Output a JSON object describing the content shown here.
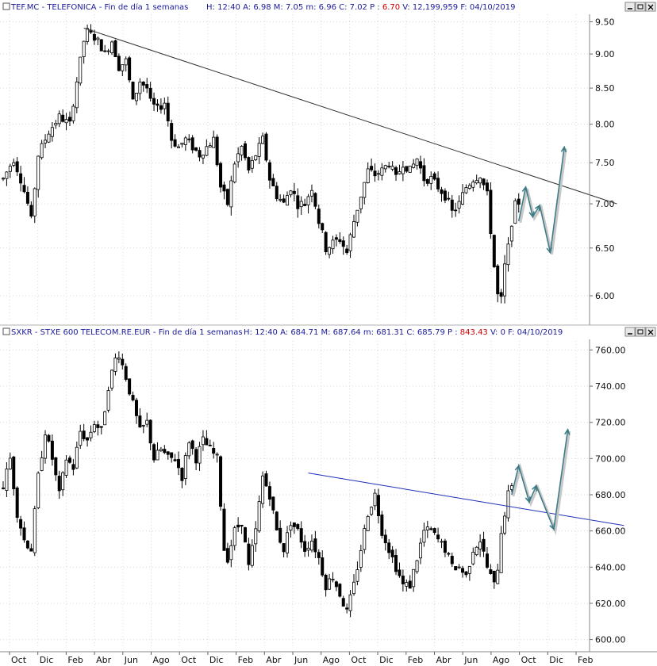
{
  "panels": [
    {
      "symbol": "TEF.MC - TELEFONICA",
      "period": "Fin de día 1 semanas",
      "fields": [
        {
          "label": "H:",
          "value": "12:40",
          "color": "#1a1a9a"
        },
        {
          "label": "A:",
          "value": "6.98",
          "color": "#1a1a9a"
        },
        {
          "label": "M:",
          "value": "7.05",
          "color": "#1a1a9a"
        },
        {
          "label": "m:",
          "value": "6.96",
          "color": "#1a1a9a"
        },
        {
          "label": "C:",
          "value": "7.02",
          "color": "#1a1a9a"
        },
        {
          "label": "P :",
          "value": "6.70",
          "color": "#cc0000"
        },
        {
          "label": "V:",
          "value": "12,199,959",
          "color": "#1a1a9a"
        },
        {
          "label": "F:",
          "value": "04/10/2019",
          "color": "#1a1a9a"
        }
      ]
    },
    {
      "symbol": "SXKR - STXE 600 TELECOM.RE.EUR",
      "period": "Fin de día 1 semanas",
      "fields": [
        {
          "label": "H:",
          "value": "12:40",
          "color": "#1a1a9a"
        },
        {
          "label": "A:",
          "value": "684.71",
          "color": "#1a1a9a"
        },
        {
          "label": "M:",
          "value": "687.64",
          "color": "#1a1a9a"
        },
        {
          "label": "m:",
          "value": "681.31",
          "color": "#1a1a9a"
        },
        {
          "label": "C:",
          "value": "685.79",
          "color": "#1a1a9a"
        },
        {
          "label": "P :",
          "value": "843.43",
          "color": "#cc0000"
        },
        {
          "label": "V:",
          "value": "0",
          "color": "#1a1a9a"
        },
        {
          "label": "F:",
          "value": "04/10/2019",
          "color": "#1a1a9a"
        }
      ]
    }
  ],
  "x_axis_labels": [
    "Oct",
    "Dic",
    "Feb",
    "Abr",
    "Jun",
    "Ago",
    "Oct",
    "Dic",
    "Feb",
    "Abr",
    "Jun",
    "Ago",
    "Oct",
    "Dic",
    "Feb",
    "Abr",
    "Jun",
    "Ago",
    "Oct",
    "Dic",
    "Feb"
  ],
  "chart_data": [
    {
      "type": "candlestick",
      "title": "TEF.MC - TELEFONICA",
      "y_ticks": [
        6.0,
        6.5,
        7.0,
        7.5,
        8.0,
        8.5,
        9.0,
        9.5
      ],
      "y_tick_labels": [
        "6.00",
        "6.50",
        "7.00",
        "7.50",
        "8.00",
        "8.50",
        "9.00",
        "9.50"
      ],
      "ylim": [
        5.75,
        9.62
      ],
      "scale": "log",
      "x_ticks_months": [
        "Oct",
        "Dic",
        "Feb",
        "Abr",
        "Jun",
        "Ago",
        "Oct",
        "Dic",
        "Feb",
        "Abr",
        "Jun",
        "Ago",
        "Oct",
        "Dic",
        "Feb",
        "Abr",
        "Jun",
        "Ago",
        "Oct",
        "Dic",
        "Feb"
      ],
      "price_path": [
        [
          0,
          7.3
        ],
        [
          3,
          7.55
        ],
        [
          5,
          7.3
        ],
        [
          7,
          7.0
        ],
        [
          8,
          6.8
        ],
        [
          10,
          7.6
        ],
        [
          13,
          7.9
        ],
        [
          16,
          8.1
        ],
        [
          19,
          8.0
        ],
        [
          21,
          8.6
        ],
        [
          23,
          9.2
        ],
        [
          24,
          9.35
        ],
        [
          27,
          9.2
        ],
        [
          29,
          9.0
        ],
        [
          31,
          9.2
        ],
        [
          33,
          8.8
        ],
        [
          35,
          8.9
        ],
        [
          37,
          8.3
        ],
        [
          39,
          8.6
        ],
        [
          41,
          8.5
        ],
        [
          42,
          8.3
        ],
        [
          44,
          8.2
        ],
        [
          46,
          8.3
        ],
        [
          48,
          7.8
        ],
        [
          50,
          7.7
        ],
        [
          52,
          7.8
        ],
        [
          54,
          7.7
        ],
        [
          56,
          7.6
        ],
        [
          58,
          7.7
        ],
        [
          60,
          7.8
        ],
        [
          62,
          7.2
        ],
        [
          64,
          7.0
        ],
        [
          66,
          7.5
        ],
        [
          68,
          7.7
        ],
        [
          70,
          7.4
        ],
        [
          72,
          7.6
        ],
        [
          74,
          7.8
        ],
        [
          76,
          7.3
        ],
        [
          78,
          7.1
        ],
        [
          80,
          7.0
        ],
        [
          82,
          7.2
        ],
        [
          84,
          7.0
        ],
        [
          86,
          7.0
        ],
        [
          88,
          7.2
        ],
        [
          90,
          6.8
        ],
        [
          92,
          6.5
        ],
        [
          94,
          6.55
        ],
        [
          96,
          6.6
        ],
        [
          98,
          6.45
        ],
        [
          100,
          6.8
        ],
        [
          102,
          7.1
        ],
        [
          104,
          7.4
        ],
        [
          106,
          7.35
        ],
        [
          108,
          7.4
        ],
        [
          110,
          7.5
        ],
        [
          112,
          7.3
        ],
        [
          114,
          7.5
        ],
        [
          116,
          7.4
        ],
        [
          118,
          7.55
        ],
        [
          120,
          7.3
        ],
        [
          122,
          7.3
        ],
        [
          124,
          7.2
        ],
        [
          126,
          7.1
        ],
        [
          128,
          6.9
        ],
        [
          130,
          7.0
        ],
        [
          132,
          7.2
        ],
        [
          134,
          7.3
        ],
        [
          136,
          7.35
        ],
        [
          138,
          7.1
        ],
        [
          139,
          6.7
        ],
        [
          140,
          6.3
        ],
        [
          141,
          6.0
        ],
        [
          142,
          5.95
        ],
        [
          143,
          6.3
        ],
        [
          144,
          6.5
        ],
        [
          145,
          6.8
        ],
        [
          146,
          6.98
        ],
        [
          147,
          7.02
        ]
      ],
      "trendline": {
        "from": {
          "week": 23,
          "value": 9.4
        },
        "to": {
          "week": 175,
          "value": 7.0
        }
      },
      "projection": [
        [
          147,
          6.8
        ],
        [
          149,
          7.2
        ],
        [
          151,
          6.85
        ],
        [
          153,
          6.98
        ],
        [
          156,
          6.45
        ],
        [
          160,
          7.7
        ]
      ]
    },
    {
      "type": "candlestick",
      "title": "SXKR - STXE 600 TELECOM.RE.EUR",
      "y_ticks": [
        600,
        620,
        640,
        660,
        680,
        700,
        720,
        740,
        760
      ],
      "y_tick_labels": [
        "600.00",
        "620.00",
        "640.00",
        "660.00",
        "680.00",
        "700.00",
        "720.00",
        "740.00",
        "760.00"
      ],
      "ylim": [
        595,
        765
      ],
      "scale": "linear",
      "x_ticks_months": [
        "Oct",
        "Dic",
        "Feb",
        "Abr",
        "Jun",
        "Ago",
        "Oct",
        "Dic",
        "Feb",
        "Abr",
        "Jun",
        "Ago",
        "Oct",
        "Dic",
        "Feb",
        "Abr",
        "Jun",
        "Ago",
        "Oct",
        "Dic",
        "Feb"
      ],
      "price_path": [
        [
          0,
          685
        ],
        [
          2,
          700
        ],
        [
          4,
          670
        ],
        [
          6,
          655
        ],
        [
          8,
          650
        ],
        [
          10,
          690
        ],
        [
          12,
          715
        ],
        [
          14,
          700
        ],
        [
          16,
          680
        ],
        [
          18,
          700
        ],
        [
          20,
          695
        ],
        [
          22,
          715
        ],
        [
          24,
          710
        ],
        [
          26,
          720
        ],
        [
          28,
          715
        ],
        [
          30,
          740
        ],
        [
          32,
          755
        ],
        [
          33,
          758
        ],
        [
          35,
          745
        ],
        [
          37,
          730
        ],
        [
          39,
          715
        ],
        [
          41,
          720
        ],
        [
          43,
          700
        ],
        [
          45,
          705
        ],
        [
          47,
          700
        ],
        [
          49,
          700
        ],
        [
          51,
          690
        ],
        [
          53,
          710
        ],
        [
          55,
          700
        ],
        [
          57,
          710
        ],
        [
          59,
          705
        ],
        [
          61,
          700
        ],
        [
          63,
          650
        ],
        [
          64,
          645
        ],
        [
          66,
          660
        ],
        [
          68,
          665
        ],
        [
          70,
          640
        ],
        [
          72,
          660
        ],
        [
          74,
          690
        ],
        [
          76,
          680
        ],
        [
          78,
          660
        ],
        [
          80,
          650
        ],
        [
          82,
          665
        ],
        [
          84,
          660
        ],
        [
          86,
          650
        ],
        [
          88,
          655
        ],
        [
          90,
          645
        ],
        [
          92,
          630
        ],
        [
          94,
          635
        ],
        [
          96,
          625
        ],
        [
          98,
          615
        ],
        [
          100,
          630
        ],
        [
          102,
          650
        ],
        [
          104,
          670
        ],
        [
          106,
          680
        ],
        [
          108,
          660
        ],
        [
          110,
          650
        ],
        [
          112,
          640
        ],
        [
          114,
          630
        ],
        [
          116,
          630
        ],
        [
          118,
          645
        ],
        [
          120,
          660
        ],
        [
          122,
          660
        ],
        [
          124,
          655
        ],
        [
          126,
          650
        ],
        [
          128,
          640
        ],
        [
          130,
          640
        ],
        [
          132,
          635
        ],
        [
          134,
          650
        ],
        [
          136,
          655
        ],
        [
          138,
          640
        ],
        [
          139,
          635
        ],
        [
          140,
          630
        ],
        [
          141,
          640
        ],
        [
          142,
          660
        ],
        [
          143,
          670
        ],
        [
          144,
          680
        ],
        [
          145,
          686
        ]
      ],
      "trendline": {
        "from": {
          "week": 87,
          "value": 692
        },
        "to": {
          "week": 177,
          "value": 663
        }
      },
      "projection": [
        [
          145,
          680
        ],
        [
          147,
          696
        ],
        [
          150,
          676
        ],
        [
          152,
          685
        ],
        [
          157,
          661
        ],
        [
          161,
          716
        ]
      ]
    }
  ]
}
